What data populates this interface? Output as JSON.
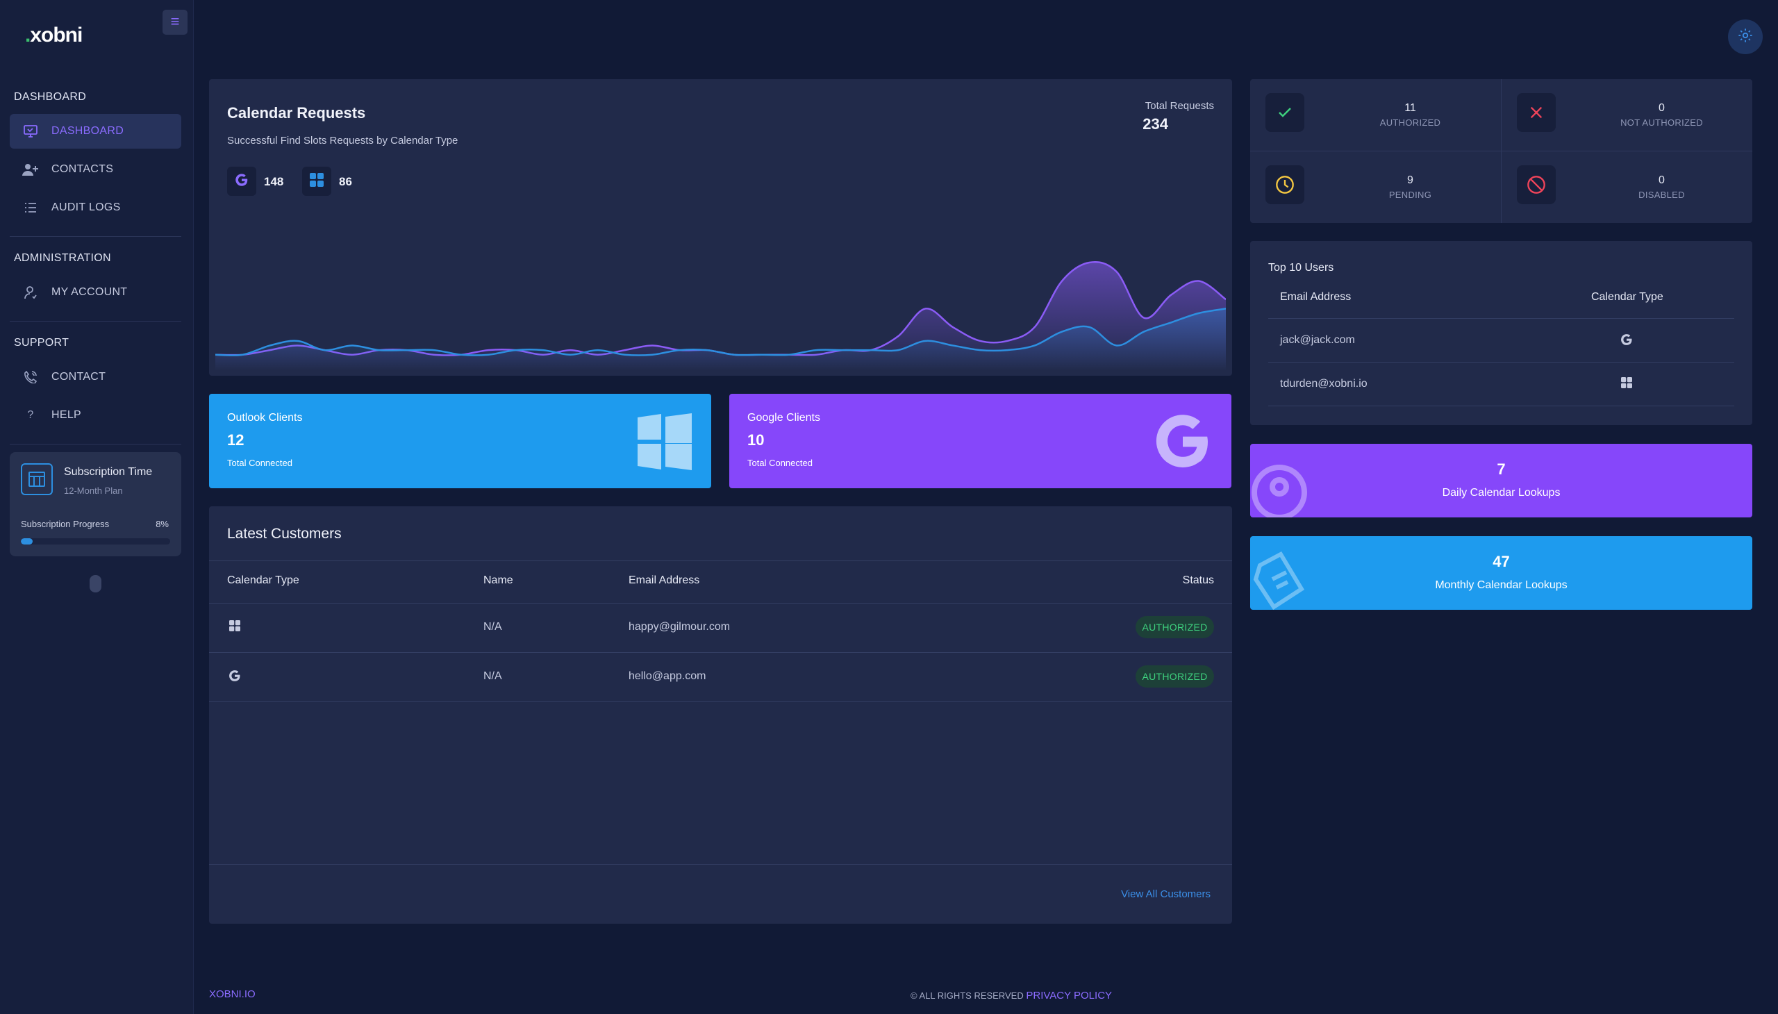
{
  "app": {
    "logo": "xobni",
    "logo_dot": "."
  },
  "sidebar": {
    "sections": {
      "dashboard": "DASHBOARD",
      "administration": "ADMINISTRATION",
      "support": "SUPPORT"
    },
    "items": [
      {
        "label": "DASHBOARD",
        "icon": "monitor-icon",
        "active": true
      },
      {
        "label": "CONTACTS",
        "icon": "user-plus-icon"
      },
      {
        "label": "AUDIT LOGS",
        "icon": "list-icon"
      },
      {
        "label": "MY ACCOUNT",
        "icon": "user-icon"
      },
      {
        "label": "CONTACT",
        "icon": "phone-icon"
      },
      {
        "label": "HELP",
        "icon": "question-icon"
      }
    ],
    "subscription": {
      "title": "Subscription Time",
      "plan": "12-Month Plan",
      "progress_label": "Subscription Progress",
      "progress_value": "8%",
      "progress": 8
    }
  },
  "calendar_requests": {
    "title": "Calendar Requests",
    "subtitle": "Successful Find Slots Requests by Calendar Type",
    "total_label": "Total Requests",
    "total_value": "234",
    "google_count": "148",
    "microsoft_count": "86"
  },
  "chart_data": {
    "type": "area",
    "series": [
      {
        "color": "#8b5cf6",
        "values": [
          2,
          2,
          3,
          4,
          3,
          2,
          3,
          3,
          2,
          2,
          3,
          3,
          2,
          3,
          2,
          3,
          4,
          3,
          3,
          2,
          2,
          2,
          2,
          3,
          3,
          6,
          12,
          8,
          5,
          5,
          8,
          18,
          22,
          20,
          10,
          15,
          18,
          14
        ]
      },
      {
        "color": "#2d8fe0",
        "values": [
          2,
          2,
          4,
          5,
          3,
          4,
          3,
          3,
          3,
          2,
          2,
          3,
          3,
          2,
          3,
          2,
          2,
          3,
          3,
          2,
          2,
          2,
          3,
          3,
          3,
          3,
          5,
          4,
          3,
          3,
          4,
          7,
          8,
          4,
          7,
          9,
          11,
          12
        ]
      }
    ],
    "grid": false
  },
  "clients": {
    "outlook": {
      "label": "Outlook Clients",
      "count": "12",
      "sub": "Total Connected",
      "color": "#1e9bee"
    },
    "google": {
      "label": "Google Clients",
      "count": "10",
      "sub": "Total Connected",
      "color": "#8647fa"
    }
  },
  "latest_customers": {
    "title": "Latest Customers",
    "columns": [
      "Calendar Type",
      "Name",
      "Email Address",
      "Status"
    ],
    "rows": [
      {
        "calendar": "microsoft-icon",
        "name": "N/A",
        "email": "happy@gilmour.com",
        "status": "AUTHORIZED"
      },
      {
        "calendar": "google-icon",
        "name": "N/A",
        "email": "hello@app.com",
        "status": "AUTHORIZED"
      }
    ],
    "view_all": "View All Customers"
  },
  "auth_stats": [
    {
      "value": "11",
      "label": "AUTHORIZED",
      "icon": "check-icon",
      "color": "#3ed17e"
    },
    {
      "value": "0",
      "label": "NOT AUTHORIZED",
      "icon": "x-icon",
      "color": "#f0445a"
    },
    {
      "value": "9",
      "label": "PENDING",
      "icon": "clock-icon",
      "color": "#f5c842"
    },
    {
      "value": "0",
      "label": "DISABLED",
      "icon": "ban-icon",
      "color": "#f0445a"
    }
  ],
  "top_users": {
    "title": "Top 10 Users",
    "columns": [
      "Email Address",
      "Calendar Type"
    ],
    "rows": [
      {
        "email": "jack@jack.com",
        "calendar": "google-icon"
      },
      {
        "email": "tdurden@xobni.io",
        "calendar": "microsoft-icon"
      }
    ]
  },
  "lookups": {
    "daily": {
      "value": "7",
      "label": "Daily Calendar Lookups",
      "color": "#8647fa"
    },
    "monthly": {
      "value": "47",
      "label": "Monthly Calendar Lookups",
      "color": "#1e9bee"
    }
  },
  "footer": {
    "left": "XOBNI.IO",
    "rights": "© ALL RIGHTS RESERVED",
    "privacy": "PRIVACY POLICY"
  }
}
